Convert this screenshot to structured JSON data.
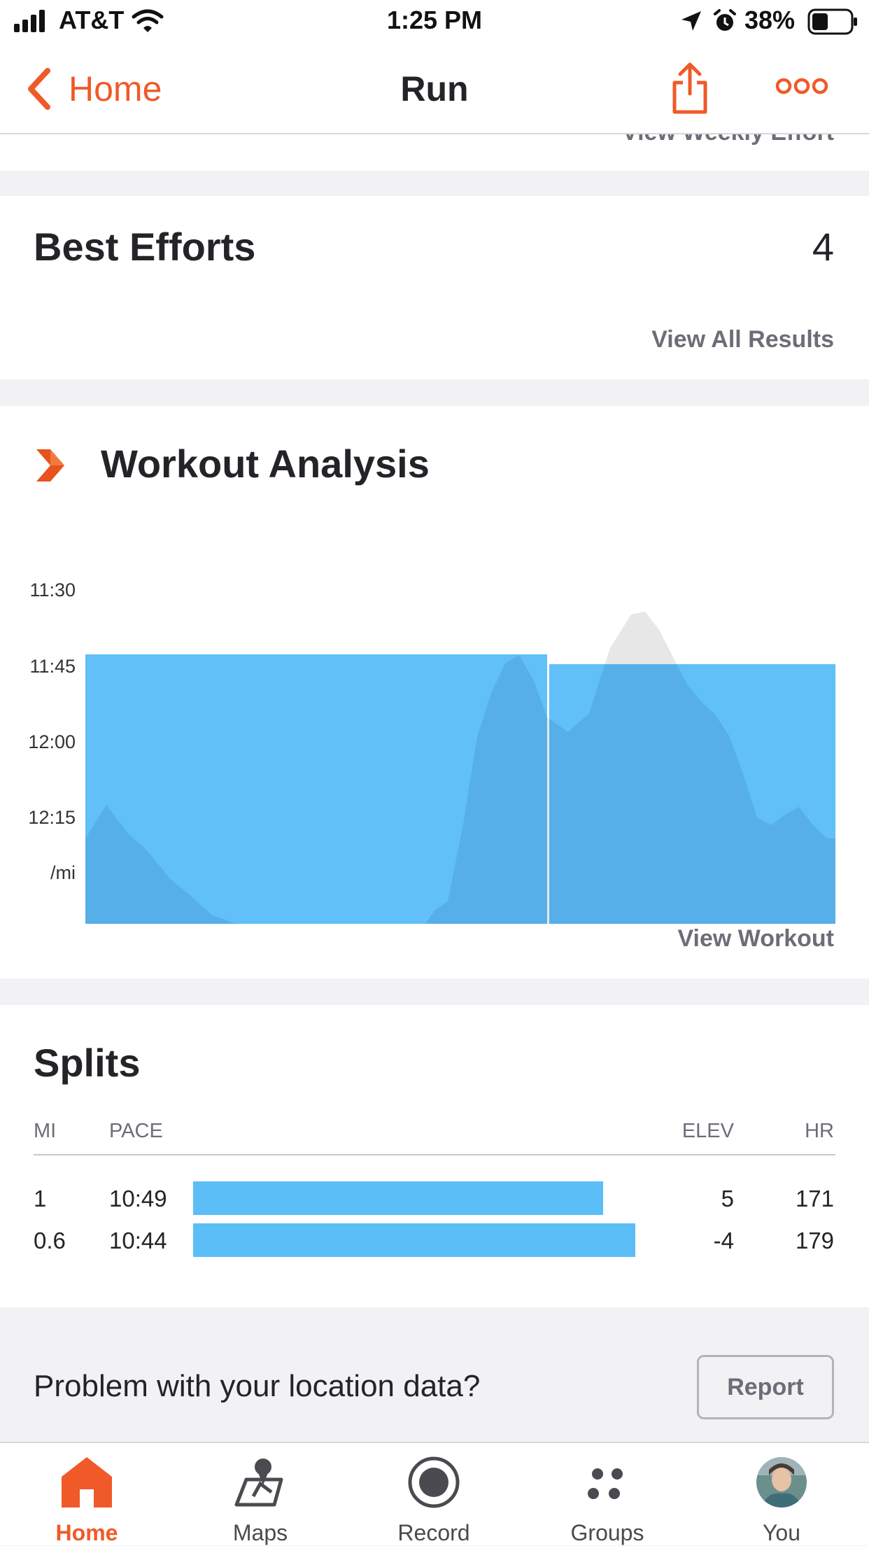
{
  "status_bar": {
    "carrier": "AT&T",
    "time": "1:25 PM",
    "battery": "38%"
  },
  "nav": {
    "back_label": "Home",
    "title": "Run"
  },
  "peek_text": "View Weekly Effort",
  "best_efforts": {
    "title": "Best Efforts",
    "count": "4",
    "link": "View All Results"
  },
  "workout_analysis": {
    "title": "Workout Analysis",
    "link": "View Workout"
  },
  "chart_data": {
    "type": "area",
    "y_ticks": [
      "11:30",
      "11:45",
      "12:00",
      "12:15"
    ],
    "y_unit": "/mi",
    "y_reversed": true,
    "series": [
      {
        "values": [
          1.0,
          1.0
        ],
        "color": "#5bbef7",
        "kind": "lap-bars",
        "laps": [
          {
            "mi": "1",
            "pace": "10:49"
          },
          {
            "mi": "0.6",
            "pace": "10:44"
          }
        ]
      },
      {
        "kind": "elevation-profile",
        "color": "#e7e7e7"
      }
    ]
  },
  "splits": {
    "title": "Splits",
    "headers": {
      "mi": "MI",
      "pace": "PACE",
      "elev": "ELEV",
      "hr": "HR"
    },
    "rows": [
      {
        "mi": "1",
        "pace": "10:49",
        "elev": "5",
        "hr": "171",
        "bar_fraction": 0.84
      },
      {
        "mi": "0.6",
        "pace": "10:44",
        "elev": "-4",
        "hr": "179",
        "bar_fraction": 0.905
      }
    ]
  },
  "report": {
    "prompt": "Problem with your location data?",
    "button": "Report"
  },
  "tabs": [
    {
      "label": "Home",
      "icon": "home-icon",
      "active": true
    },
    {
      "label": "Maps",
      "icon": "maps-icon",
      "active": false
    },
    {
      "label": "Record",
      "icon": "record-icon",
      "active": false
    },
    {
      "label": "Groups",
      "icon": "groups-icon",
      "active": false
    },
    {
      "label": "You",
      "icon": "avatar-icon",
      "active": false
    }
  ],
  "colors": {
    "accent": "#f05a28",
    "pace_blue": "#5bbef7",
    "text": "#242428",
    "muted": "#6d6d78"
  }
}
